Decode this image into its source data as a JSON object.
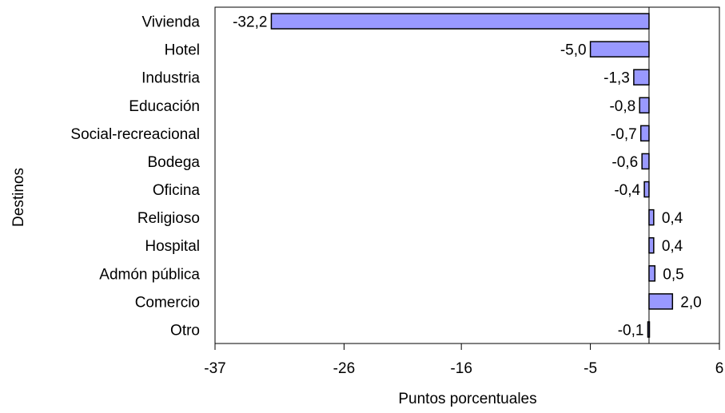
{
  "chart_data": {
    "type": "bar",
    "orientation": "horizontal",
    "categories": [
      "Vivienda",
      "Hotel",
      "Industria",
      "Educación",
      "Social-recreacional",
      "Bodega",
      "Oficina",
      "Religioso",
      "Hospital",
      "Admón pública",
      "Comercio",
      "Otro"
    ],
    "values": [
      -32.2,
      -5.0,
      -1.3,
      -0.8,
      -0.7,
      -0.6,
      -0.4,
      0.4,
      0.4,
      0.5,
      2.0,
      -0.1
    ],
    "value_labels": [
      "-32,2",
      "-5,0",
      "-1,3",
      "-0,8",
      "-0,7",
      "-0,6",
      "-0,4",
      "0,4",
      "0,4",
      "0,5",
      "2,0",
      "-0,1"
    ],
    "xlabel": "Puntos  porcentuales",
    "ylabel": "Destinos",
    "xlim": [
      -37,
      6
    ],
    "xticks": [
      -37,
      -26,
      -16,
      -5,
      6
    ],
    "xtick_labels": [
      "-37",
      "-26",
      "-16",
      "-5",
      "6"
    ],
    "grid": false,
    "colors": {
      "bar_fill": "#9999ff",
      "bar_stroke": "#000000"
    }
  }
}
